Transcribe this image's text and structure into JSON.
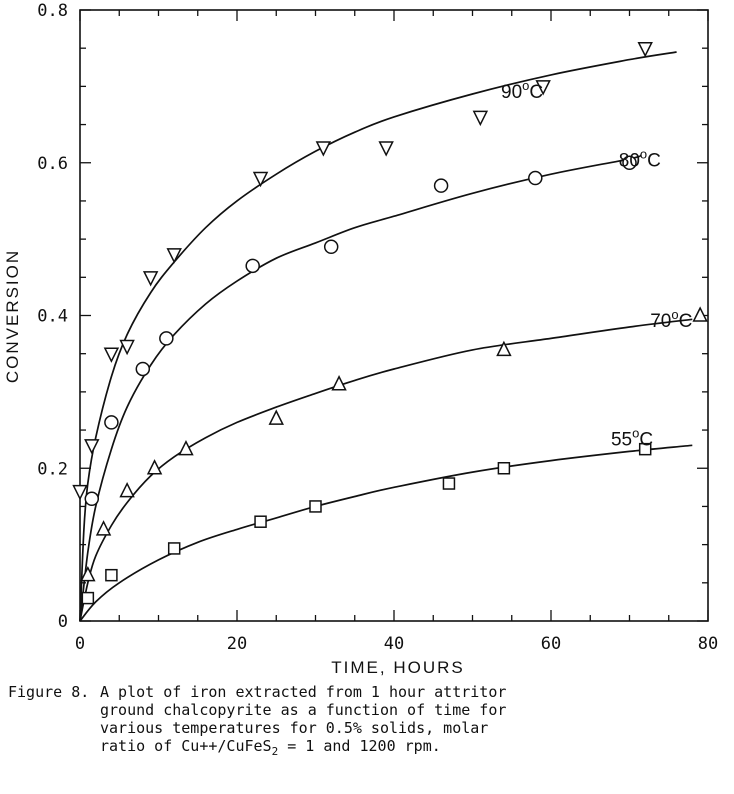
{
  "chart_data": {
    "type": "scatter",
    "xlabel": "TIME, HOURS",
    "ylabel": "CONVERSION",
    "xlim": [
      0,
      80
    ],
    "ylim": [
      0,
      0.8
    ],
    "xticks": [
      0,
      20,
      40,
      60,
      80
    ],
    "xtick_labels": [
      "0",
      "20",
      "40",
      "60",
      "80"
    ],
    "yticks": [
      0,
      0.2,
      0.4,
      0.6,
      0.8
    ],
    "ytick_labels": [
      "0",
      "0.2",
      "0.4",
      "0.6",
      "0.8"
    ],
    "grid": false,
    "legend": "labels next to curves",
    "series": [
      {
        "name": "90",
        "unit": "C",
        "marker": "triangle-down",
        "points": [
          [
            0,
            0.17
          ],
          [
            1.5,
            0.23
          ],
          [
            4,
            0.35
          ],
          [
            6,
            0.36
          ],
          [
            9,
            0.45
          ],
          [
            12,
            0.48
          ],
          [
            23,
            0.58
          ],
          [
            31,
            0.62
          ],
          [
            39,
            0.62
          ],
          [
            51,
            0.66
          ],
          [
            59,
            0.7
          ],
          [
            72,
            0.75
          ]
        ],
        "curve": [
          [
            0,
            0.0
          ],
          [
            0.5,
            0.12
          ],
          [
            1,
            0.18
          ],
          [
            2,
            0.24
          ],
          [
            4,
            0.32
          ],
          [
            6,
            0.375
          ],
          [
            9,
            0.43
          ],
          [
            12,
            0.47
          ],
          [
            16,
            0.515
          ],
          [
            20,
            0.55
          ],
          [
            25,
            0.585
          ],
          [
            30,
            0.615
          ],
          [
            35,
            0.64
          ],
          [
            40,
            0.66
          ],
          [
            50,
            0.69
          ],
          [
            60,
            0.715
          ],
          [
            70,
            0.735
          ],
          [
            76,
            0.745
          ]
        ]
      },
      {
        "name": "80",
        "unit": "C",
        "marker": "circle",
        "points": [
          [
            1.5,
            0.16
          ],
          [
            4,
            0.26
          ],
          [
            8,
            0.33
          ],
          [
            11,
            0.37
          ],
          [
            22,
            0.465
          ],
          [
            32,
            0.49
          ],
          [
            46,
            0.57
          ],
          [
            58,
            0.58
          ],
          [
            70,
            0.6
          ]
        ],
        "curve": [
          [
            0,
            0.0
          ],
          [
            1,
            0.09
          ],
          [
            2,
            0.15
          ],
          [
            4,
            0.225
          ],
          [
            6,
            0.28
          ],
          [
            9,
            0.335
          ],
          [
            12,
            0.375
          ],
          [
            16,
            0.415
          ],
          [
            20,
            0.445
          ],
          [
            25,
            0.475
          ],
          [
            30,
            0.495
          ],
          [
            35,
            0.515
          ],
          [
            40,
            0.53
          ],
          [
            50,
            0.56
          ],
          [
            60,
            0.585
          ],
          [
            70,
            0.605
          ],
          [
            71.5,
            0.61
          ]
        ]
      },
      {
        "name": "70",
        "unit": "C",
        "marker": "triangle-up",
        "points": [
          [
            1,
            0.06
          ],
          [
            3,
            0.12
          ],
          [
            6,
            0.17
          ],
          [
            9.5,
            0.2
          ],
          [
            13.5,
            0.225
          ],
          [
            25,
            0.265
          ],
          [
            33,
            0.31
          ],
          [
            54,
            0.355
          ],
          [
            79,
            0.4
          ]
        ],
        "curve": [
          [
            0,
            0.0
          ],
          [
            1,
            0.05
          ],
          [
            2,
            0.085
          ],
          [
            4,
            0.125
          ],
          [
            6,
            0.155
          ],
          [
            9,
            0.19
          ],
          [
            12,
            0.215
          ],
          [
            16,
            0.24
          ],
          [
            20,
            0.26
          ],
          [
            25,
            0.28
          ],
          [
            30,
            0.298
          ],
          [
            35,
            0.315
          ],
          [
            40,
            0.33
          ],
          [
            50,
            0.355
          ],
          [
            60,
            0.37
          ],
          [
            70,
            0.385
          ],
          [
            78,
            0.395
          ]
        ]
      },
      {
        "name": "55",
        "unit": "C",
        "marker": "square",
        "points": [
          [
            1,
            0.03
          ],
          [
            4,
            0.06
          ],
          [
            12,
            0.095
          ],
          [
            23,
            0.13
          ],
          [
            30,
            0.15
          ],
          [
            47,
            0.18
          ],
          [
            54,
            0.2
          ],
          [
            72,
            0.225
          ]
        ],
        "curve": [
          [
            0,
            0.0
          ],
          [
            2,
            0.025
          ],
          [
            5,
            0.05
          ],
          [
            10,
            0.08
          ],
          [
            15,
            0.103
          ],
          [
            20,
            0.12
          ],
          [
            25,
            0.135
          ],
          [
            30,
            0.15
          ],
          [
            35,
            0.163
          ],
          [
            40,
            0.175
          ],
          [
            50,
            0.195
          ],
          [
            60,
            0.21
          ],
          [
            70,
            0.222
          ],
          [
            78,
            0.23
          ]
        ]
      }
    ],
    "caption": {
      "head": "Figure 8.",
      "line1": "A plot of iron extracted from 1 hour attritor",
      "line2": "ground chalcopyrite as a function of time for",
      "line3": "various temperatures for 0.5% solids, molar",
      "line4_before": "ratio of Cu++/CuFeS",
      "line4_sub": "2",
      "line4_after": " = 1 and 1200 rpm."
    }
  }
}
